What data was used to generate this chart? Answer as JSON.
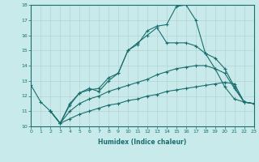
{
  "xlabel": "Humidex (Indice chaleur)",
  "bg_color": "#c8eaea",
  "grid_color": "#b8d8d8",
  "line_color": "#1a6e6e",
  "xlim": [
    0,
    23
  ],
  "ylim": [
    10,
    18
  ],
  "xticks": [
    0,
    1,
    2,
    3,
    4,
    5,
    6,
    7,
    8,
    9,
    10,
    11,
    12,
    13,
    14,
    15,
    16,
    17,
    18,
    19,
    20,
    21,
    22,
    23
  ],
  "yticks": [
    10,
    11,
    12,
    13,
    14,
    15,
    16,
    17,
    18
  ],
  "series": [
    {
      "x": [
        0,
        1,
        2,
        3,
        4,
        5,
        6,
        7,
        8,
        9,
        10,
        11,
        12,
        13,
        14,
        15,
        16,
        17,
        18,
        19,
        20,
        21,
        22,
        23
      ],
      "y": [
        12.7,
        11.6,
        11.0,
        10.2,
        11.4,
        12.2,
        12.5,
        12.3,
        13.0,
        13.5,
        15.0,
        15.4,
        16.3,
        16.6,
        16.7,
        17.9,
        18.0,
        17.0,
        14.8,
        13.8,
        12.6,
        11.8,
        11.6,
        11.5
      ]
    },
    {
      "x": [
        2,
        3,
        4,
        5,
        6,
        7,
        8,
        9,
        10,
        11,
        12,
        13,
        14,
        15,
        16,
        17,
        18,
        19,
        20,
        21,
        22,
        23
      ],
      "y": [
        11.0,
        10.2,
        11.5,
        12.2,
        12.4,
        12.5,
        13.2,
        13.5,
        15.0,
        15.5,
        16.0,
        16.5,
        15.5,
        15.5,
        15.5,
        15.3,
        14.8,
        14.5,
        13.8,
        12.6,
        11.6,
        11.5
      ]
    },
    {
      "x": [
        2,
        3,
        4,
        5,
        6,
        7,
        8,
        9,
        10,
        11,
        12,
        13,
        14,
        15,
        16,
        17,
        18,
        19,
        20,
        21,
        22,
        23
      ],
      "y": [
        11.0,
        10.2,
        11.0,
        11.5,
        11.8,
        12.0,
        12.3,
        12.5,
        12.7,
        12.9,
        13.1,
        13.4,
        13.6,
        13.8,
        13.9,
        14.0,
        14.0,
        13.8,
        13.5,
        12.5,
        11.6,
        11.5
      ]
    },
    {
      "x": [
        2,
        3,
        4,
        5,
        6,
        7,
        8,
        9,
        10,
        11,
        12,
        13,
        14,
        15,
        16,
        17,
        18,
        19,
        20,
        21,
        22,
        23
      ],
      "y": [
        11.0,
        10.2,
        10.5,
        10.8,
        11.0,
        11.2,
        11.4,
        11.5,
        11.7,
        11.8,
        12.0,
        12.1,
        12.3,
        12.4,
        12.5,
        12.6,
        12.7,
        12.8,
        12.9,
        12.8,
        11.6,
        11.5
      ]
    }
  ]
}
